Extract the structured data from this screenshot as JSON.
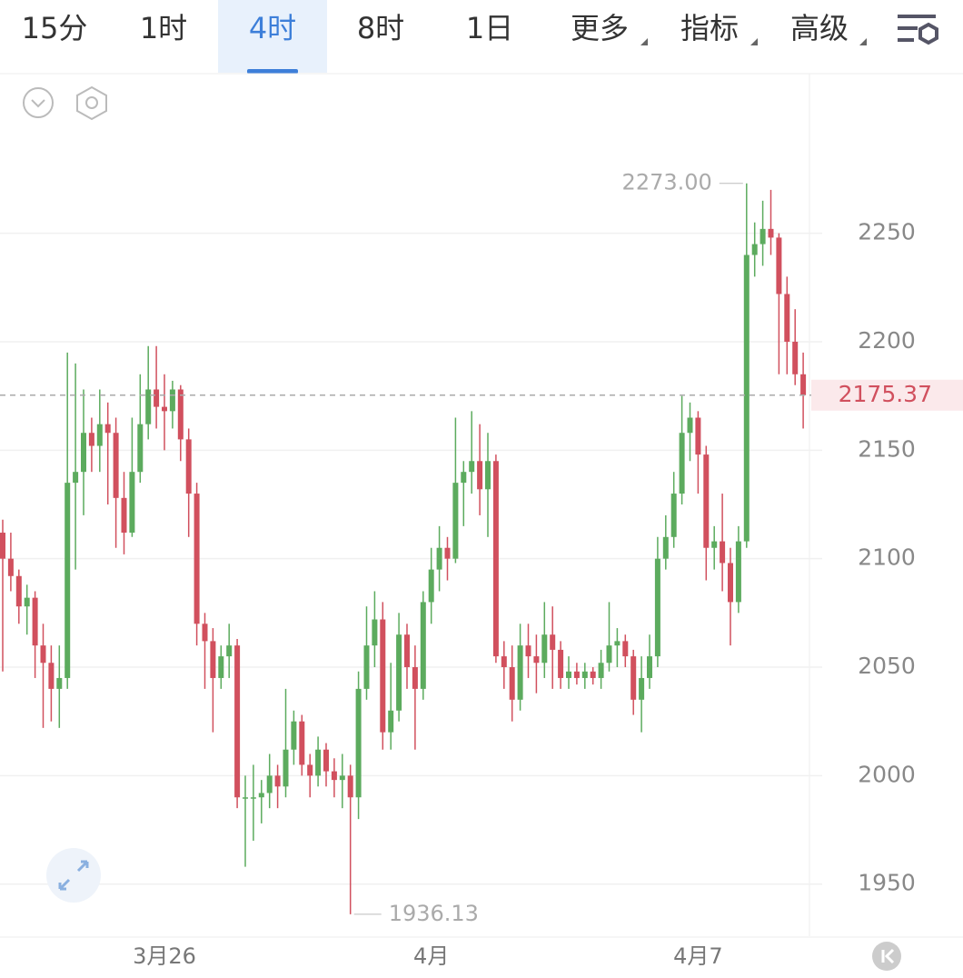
{
  "ui": {
    "tabs": [
      "15分",
      "1时",
      "4时",
      "8时",
      "1日",
      "更多",
      "指标",
      "高级"
    ],
    "active_tab": 2
  },
  "chart_data": {
    "type": "candlestick",
    "categories": [
      null,
      null,
      null,
      null,
      null,
      null,
      null,
      null,
      null,
      null,
      null,
      null,
      null,
      null,
      null,
      null,
      null,
      null,
      null,
      null,
      "3月26",
      null,
      null,
      null,
      null,
      null,
      null,
      null,
      null,
      null,
      null,
      null,
      null,
      null,
      null,
      null,
      null,
      null,
      null,
      null,
      null,
      null,
      null,
      null,
      null,
      null,
      null,
      null,
      null,
      null,
      null,
      null,
      null,
      "4月",
      null,
      null,
      null,
      null,
      null,
      null,
      null,
      null,
      null,
      null,
      null,
      null,
      null,
      null,
      null,
      null,
      null,
      null,
      null,
      null,
      null,
      null,
      null,
      null,
      null,
      null,
      null,
      null,
      null,
      null,
      null,
      null,
      "4月7",
      null,
      null,
      null,
      null,
      null,
      null,
      null,
      null,
      null,
      null,
      null,
      null,
      null
    ],
    "open": [
      2112,
      2100,
      2092,
      2078,
      2082,
      2060,
      2052,
      2040,
      2045,
      2135,
      2140,
      2158,
      2152,
      2162,
      2158,
      2128,
      2112,
      2140,
      2162,
      2178,
      2170,
      2168,
      2178,
      2155,
      2130,
      2070,
      2062,
      2045,
      2055,
      2060,
      1990,
      1990,
      1990,
      1992,
      2000,
      1995,
      2012,
      2025,
      2005,
      2000,
      2012,
      2002,
      1998,
      2000,
      1990,
      2040,
      2060,
      2072,
      2020,
      2030,
      2065,
      2050,
      2040,
      2080,
      2095,
      2105,
      2100,
      2135,
      2140,
      2145,
      2132,
      2145,
      2055,
      2050,
      2035,
      2060,
      2055,
      2052,
      2065,
      2058,
      2045,
      2048,
      2045,
      2048,
      2045,
      2052,
      2060,
      2062,
      2055,
      2035,
      2045,
      2055,
      2100,
      2110,
      2130,
      2158,
      2165,
      2148,
      2105,
      2108,
      2098,
      2080,
      2108,
      2240,
      2245,
      2252,
      2248,
      2222,
      2200,
      2185
    ],
    "high": [
      2118,
      2112,
      2095,
      2088,
      2085,
      2070,
      2060,
      2060,
      2195,
      2190,
      2178,
      2165,
      2178,
      2172,
      2165,
      2140,
      2165,
      2185,
      2198,
      2198,
      2185,
      2182,
      2180,
      2160,
      2135,
      2075,
      2068,
      2060,
      2070,
      2063,
      2000,
      2005,
      1998,
      2010,
      2005,
      2040,
      2030,
      2028,
      2010,
      2018,
      2015,
      2008,
      2010,
      2005,
      2048,
      2078,
      2085,
      2080,
      2052,
      2075,
      2070,
      2060,
      2085,
      2105,
      2115,
      2110,
      2165,
      2145,
      2168,
      2162,
      2158,
      2148,
      2062,
      2060,
      2070,
      2070,
      2065,
      2080,
      2078,
      2062,
      2055,
      2052,
      2052,
      2050,
      2058,
      2080,
      2068,
      2065,
      2058,
      2055,
      2065,
      2110,
      2120,
      2140,
      2175,
      2172,
      2168,
      2152,
      2115,
      2130,
      2105,
      2115,
      2273,
      2255,
      2265,
      2270,
      2250,
      2230,
      2215,
      2195
    ],
    "low": [
      2048,
      2085,
      2070,
      2065,
      2045,
      2022,
      2025,
      2022,
      2040,
      2095,
      2120,
      2140,
      2140,
      2125,
      2105,
      2102,
      2110,
      2135,
      2155,
      2160,
      2150,
      2160,
      2145,
      2110,
      2060,
      2040,
      2020,
      2040,
      2045,
      1985,
      1958,
      1970,
      1978,
      1985,
      1985,
      1990,
      2005,
      2000,
      1990,
      1995,
      1995,
      1990,
      1985,
      1936.13,
      1980,
      2035,
      2050,
      2012,
      2012,
      2025,
      2040,
      2012,
      2035,
      2070,
      2085,
      2090,
      2098,
      2115,
      2130,
      2120,
      2110,
      2052,
      2040,
      2025,
      2030,
      2045,
      2038,
      2045,
      2040,
      2040,
      2040,
      2042,
      2040,
      2042,
      2040,
      2048,
      2050,
      2050,
      2028,
      2020,
      2040,
      2050,
      2095,
      2105,
      2125,
      2145,
      2130,
      2090,
      2095,
      2085,
      2060,
      2075,
      2105,
      2230,
      2235,
      2240,
      2185,
      2185,
      2180,
      2160
    ],
    "close": [
      2100,
      2092,
      2078,
      2082,
      2060,
      2052,
      2040,
      2045,
      2135,
      2140,
      2158,
      2152,
      2162,
      2158,
      2128,
      2112,
      2140,
      2162,
      2178,
      2170,
      2168,
      2178,
      2155,
      2130,
      2070,
      2062,
      2045,
      2055,
      2060,
      1990,
      1990,
      1990,
      1992,
      2000,
      1995,
      2012,
      2025,
      2005,
      2000,
      2012,
      2002,
      1998,
      2000,
      1990,
      2040,
      2060,
      2072,
      2020,
      2030,
      2065,
      2050,
      2040,
      2080,
      2095,
      2105,
      2100,
      2135,
      2140,
      2145,
      2132,
      2145,
      2055,
      2050,
      2035,
      2060,
      2055,
      2052,
      2065,
      2058,
      2045,
      2048,
      2045,
      2048,
      2045,
      2052,
      2060,
      2062,
      2055,
      2035,
      2045,
      2055,
      2100,
      2110,
      2130,
      2158,
      2165,
      2148,
      2105,
      2108,
      2098,
      2080,
      2108,
      2240,
      2245,
      2252,
      2248,
      2222,
      2200,
      2185,
      2175.37
    ],
    "value_labels": {
      "close": {
        "99": "2175.37"
      }
    },
    "annotations": [
      {
        "value": 2273,
        "label": "2273.00"
      },
      {
        "value": 1936.13,
        "label": "1936.13"
      }
    ],
    "up_color": "#5cab5e",
    "down_color": "#d1505e",
    "ylim": [
      1926,
      2324
    ],
    "yticks": [
      1950,
      2000,
      2050,
      2100,
      2150,
      2200,
      2250
    ],
    "grid": true
  }
}
